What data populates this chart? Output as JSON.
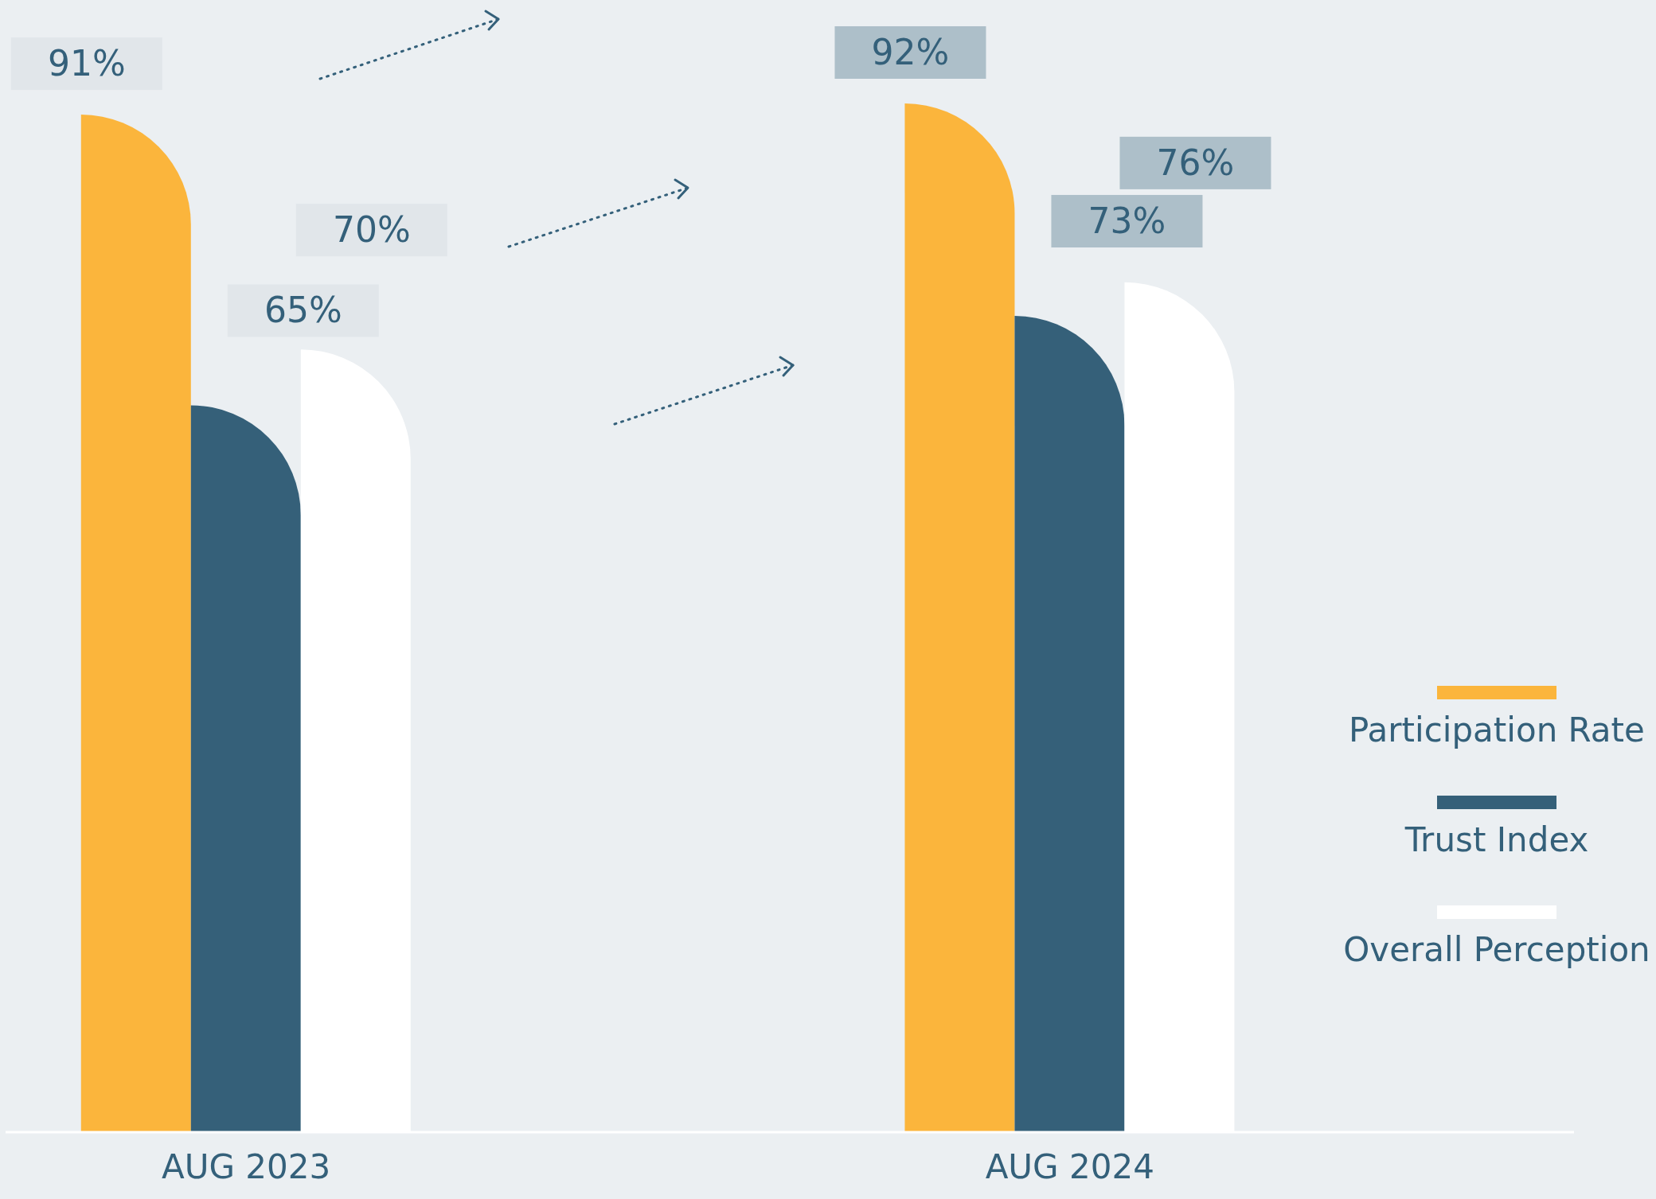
{
  "chart_data": {
    "type": "bar",
    "categories": [
      "AUG 2023",
      "AUG 2024"
    ],
    "series": [
      {
        "name": "Participation Rate",
        "color": "#fbb53c",
        "values": [
          91,
          92
        ],
        "value_labels": [
          "91%",
          "92%"
        ]
      },
      {
        "name": "Trust Index",
        "color": "#356079",
        "values": [
          65,
          73
        ],
        "value_labels": [
          "65%",
          "73%"
        ]
      },
      {
        "name": "Overall Perception",
        "color": "#ffffff",
        "values": [
          70,
          76
        ],
        "value_labels": [
          "70%",
          "76%"
        ]
      }
    ],
    "legend": "right",
    "grid": false
  }
}
